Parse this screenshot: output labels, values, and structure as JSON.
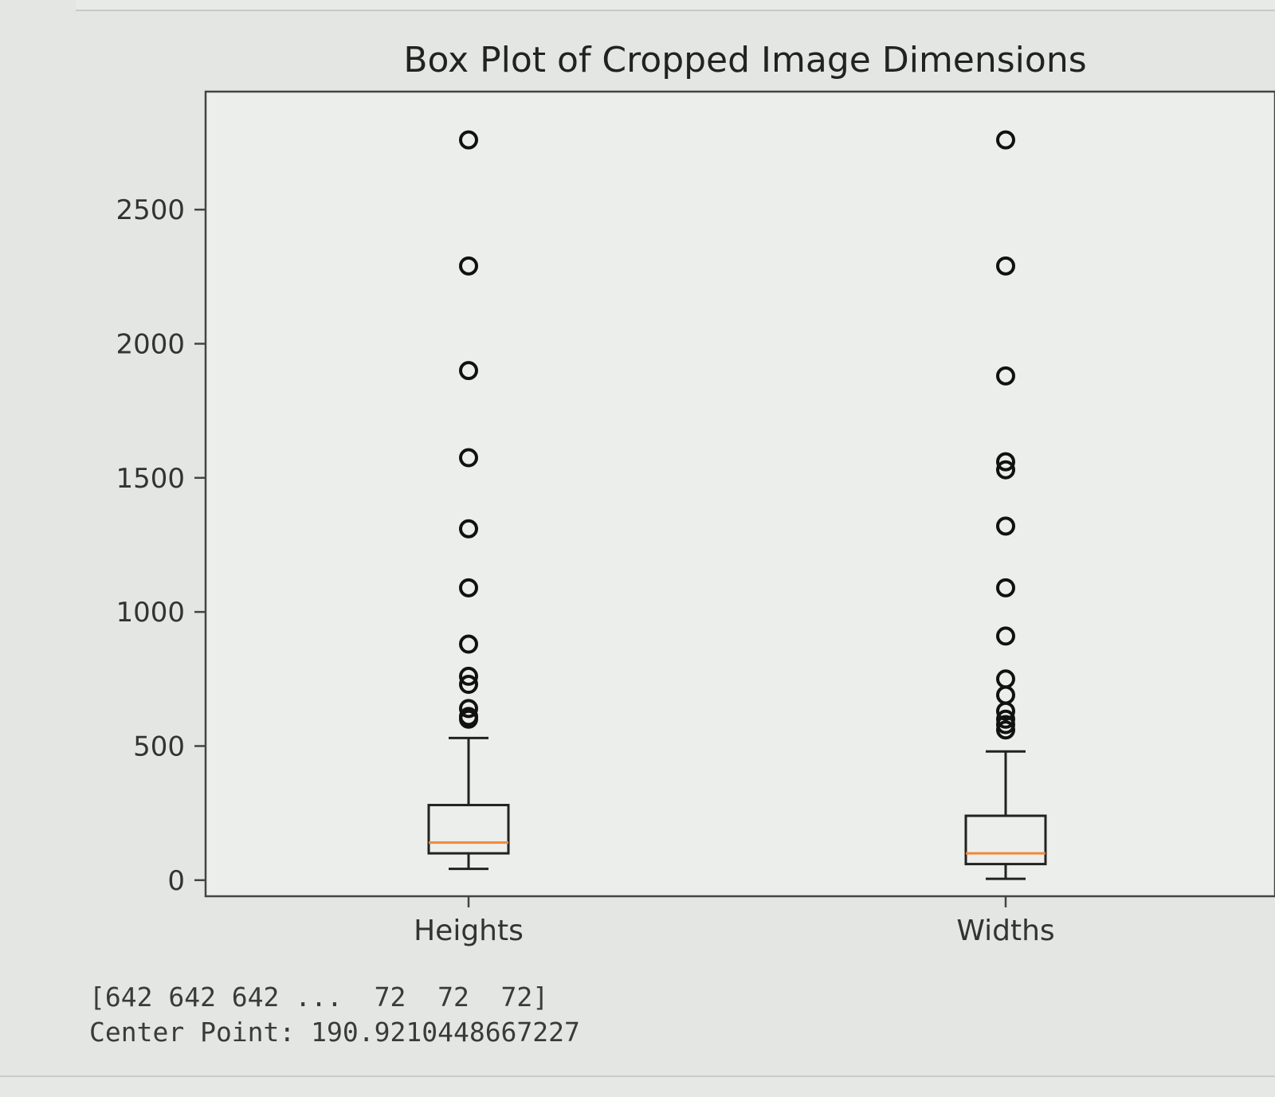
{
  "chart_data": {
    "type": "box",
    "title": "Box Plot of Cropped Image Dimensions",
    "xlabel": "",
    "ylabel": "",
    "ylim": [
      -60,
      2940
    ],
    "yticks": [
      0,
      500,
      1000,
      1500,
      2000,
      2500
    ],
    "grid": false,
    "categories": [
      "Heights",
      "Widths"
    ],
    "boxes": [
      {
        "name": "Heights",
        "whisker_low": 42,
        "q1": 100,
        "median": 140,
        "q3": 280,
        "whisker_high": 530,
        "outliers": [
          600,
          610,
          640,
          730,
          760,
          880,
          1090,
          1310,
          1575,
          1900,
          2290,
          2760
        ]
      },
      {
        "name": "Widths",
        "whisker_low": 5,
        "q1": 60,
        "median": 100,
        "q3": 240,
        "whisker_high": 480,
        "outliers": [
          560,
          580,
          600,
          630,
          690,
          750,
          910,
          1090,
          1320,
          1530,
          1560,
          1880,
          2290,
          2760
        ]
      }
    ],
    "colors": {
      "box": "#222222",
      "median": "#f0883a",
      "outlier_edge": "#111111"
    }
  },
  "output": {
    "array_line": "[642 642 642 ...  72  72  72]",
    "center_line": "Center Point: 190.9210448667227"
  }
}
